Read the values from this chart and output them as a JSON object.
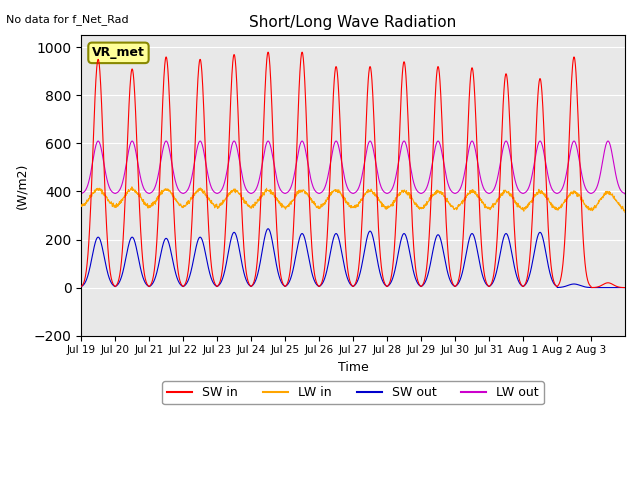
{
  "title": "Short/Long Wave Radiation",
  "xlabel": "Time",
  "ylabel": "(W/m2)",
  "top_left_text": "No data for f_Net_Rad",
  "label_box_text": "VR_met",
  "ylim": [
    -200,
    1050
  ],
  "yticks": [
    -200,
    0,
    200,
    400,
    600,
    800,
    1000
  ],
  "x_tick_labels": [
    "Jul 19",
    "Jul 20",
    "Jul 21",
    "Jul 22",
    "Jul 23",
    "Jul 24",
    "Jul 25",
    "Jul 26",
    "Jul 27",
    "Jul 28",
    "Jul 29",
    "Jul 30",
    "Jul 31",
    "Aug 1",
    "Aug 2",
    "Aug 3"
  ],
  "bg_color": "#e8e8e8",
  "colors": {
    "SW_in": "#ff0000",
    "LW_in": "#ffa500",
    "SW_out": "#0000cc",
    "LW_out": "#cc00cc"
  },
  "legend_labels": [
    "SW in",
    "LW in",
    "SW out",
    "LW out"
  ],
  "num_days": 16,
  "SW_in_peaks": [
    950,
    910,
    960,
    950,
    970,
    980,
    980,
    920,
    920,
    940,
    920,
    915,
    890,
    870,
    960,
    20
  ],
  "LW_in_base": 330,
  "LW_in_peak_add": 80,
  "SW_out_peaks": [
    210,
    210,
    205,
    210,
    230,
    245,
    225,
    225,
    235,
    225,
    220,
    225,
    225,
    230,
    15,
    0
  ],
  "LW_out_base": 390,
  "LW_out_peak_add": 220
}
